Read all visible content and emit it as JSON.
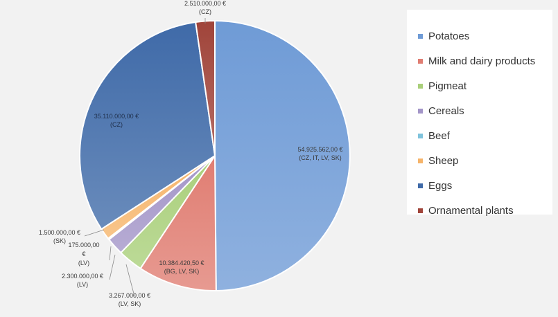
{
  "chart_data": {
    "type": "pie",
    "categories": [
      "Potatoes",
      "Milk and dairy products",
      "Pigmeat",
      "Cereals",
      "Beef",
      "Sheep",
      "Eggs",
      "Ornamental plants"
    ],
    "values": [
      54925562,
      10384420.5,
      3267000,
      2300000,
      175000,
      1500000,
      35110000,
      2510000
    ],
    "value_labels": [
      "54.925.562,00 €",
      "10.384.420,50 €",
      "3.267.000,00 €",
      "2.300.000,00 €",
      "175.000,00 €",
      "1.500.000,00 €",
      "35.110.000,00 €",
      "2.510.000,00 €"
    ],
    "country_labels": [
      "(CZ, IT, LV, SK)",
      "(BG, LV, SK)",
      "(LV, SK)",
      "(LV)",
      "(LV)",
      "(SK)",
      "(CZ)",
      "(CZ)"
    ],
    "colors": [
      "#6f9bd6",
      "#e07d72",
      "#a9cf7a",
      "#a395c8",
      "#7fc3dc",
      "#f6b46a",
      "#3f6aa8",
      "#a0443a"
    ],
    "legend_position": "right"
  },
  "legend": {
    "items": [
      {
        "label": "Potatoes",
        "color": "#6f9bd6"
      },
      {
        "label": "Milk and dairy products",
        "color": "#e07d72"
      },
      {
        "label": "Pigmeat",
        "color": "#a9cf7a"
      },
      {
        "label": "Cereals",
        "color": "#a395c8"
      },
      {
        "label": "Beef",
        "color": "#7fc3dc"
      },
      {
        "label": "Sheep",
        "color": "#f6b46a"
      },
      {
        "label": "Eggs",
        "color": "#3f6aa8"
      },
      {
        "label": "Ornamental plants",
        "color": "#a0443a"
      }
    ]
  }
}
